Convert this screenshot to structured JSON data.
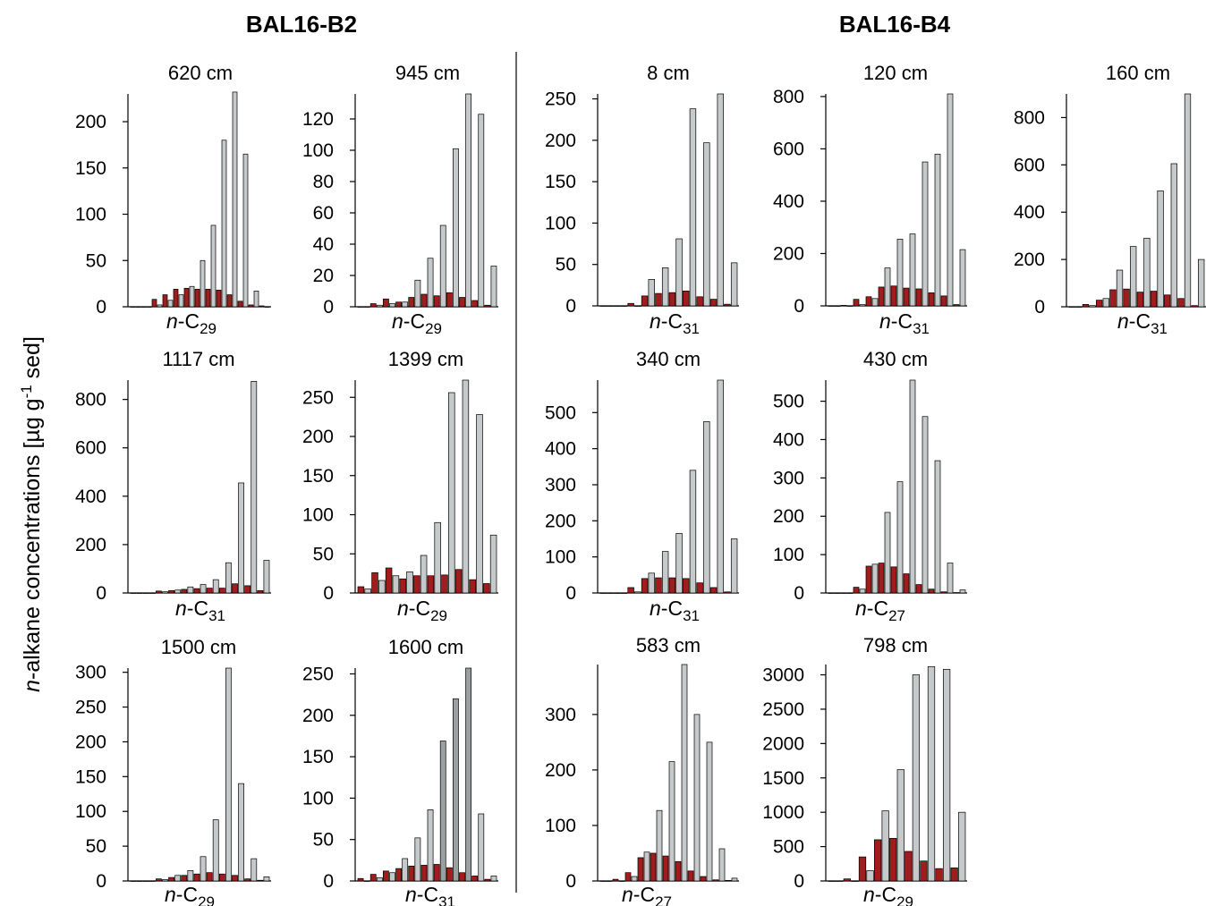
{
  "figure": {
    "ylabel_prefix": "n",
    "ylabel_main": "-alkane concentrations [µg g",
    "ylabel_sup": "-1",
    "ylabel_end": " sed]",
    "cores": [
      {
        "id": "left",
        "title": "BAL16-B2"
      },
      {
        "id": "right",
        "title": "BAL16-B4"
      }
    ]
  },
  "colors": {
    "light_bar": "#c5c9c9",
    "dark_bar": "#9aa0a0",
    "red_bar": "#a11d1d",
    "axis": "#000000",
    "divider": "#333333"
  },
  "chart_data": [
    {
      "type": "bar",
      "title": "620 cm",
      "core": "BAL16-B2",
      "ylim": [
        0,
        230
      ],
      "yticks": [
        "0",
        "50",
        "100",
        "150",
        "200"
      ],
      "ytick_values": [
        0,
        50,
        100,
        150,
        200
      ],
      "marker_prefix": "n",
      "marker_label": "-C",
      "marker_sub": "29",
      "odd_series": [
        0,
        0,
        2,
        7,
        13,
        22,
        50,
        88,
        180,
        232,
        165,
        17,
        0
      ],
      "even_series": [
        0,
        0,
        8,
        13,
        19,
        20,
        19,
        19,
        18,
        13,
        6,
        2,
        1
      ]
    },
    {
      "type": "bar",
      "title": "945 cm",
      "core": "BAL16-B2",
      "ylim": [
        0,
        136
      ],
      "yticks": [
        "0",
        "20",
        "40",
        "60",
        "80",
        "100",
        "120"
      ],
      "ytick_values": [
        0,
        20,
        40,
        60,
        80,
        100,
        120
      ],
      "marker_prefix": "n",
      "marker_label": "-C",
      "marker_sub": "29",
      "odd_series": [
        0,
        1,
        2,
        3,
        17,
        31,
        52,
        101,
        136,
        123,
        26
      ],
      "even_series": [
        0,
        2,
        5,
        3,
        6,
        8,
        7,
        9,
        6,
        4,
        1
      ]
    },
    {
      "type": "bar",
      "title": "1117 cm",
      "core": "BAL16-B2",
      "ylim": [
        0,
        880
      ],
      "yticks": [
        "0",
        "200",
        "400",
        "600",
        "800"
      ],
      "ytick_values": [
        0,
        200,
        400,
        600,
        800
      ],
      "marker_prefix": "n",
      "marker_label": "-C",
      "marker_sub": "31",
      "odd_series": [
        0,
        0,
        5,
        12,
        25,
        35,
        55,
        125,
        455,
        875,
        135
      ],
      "even_series": [
        0,
        0,
        8,
        10,
        15,
        18,
        20,
        20,
        38,
        30,
        10
      ]
    },
    {
      "type": "bar",
      "title": "1399 cm",
      "core": "BAL16-B2",
      "ylim": [
        0,
        272
      ],
      "yticks": [
        "0",
        "50",
        "100",
        "150",
        "200",
        "250"
      ],
      "ytick_values": [
        0,
        50,
        100,
        150,
        200,
        250
      ],
      "marker_prefix": "n",
      "marker_label": "-C",
      "marker_sub": "29",
      "odd_series": [
        5,
        16,
        22,
        27,
        48,
        90,
        256,
        272,
        228,
        74
      ],
      "even_series": [
        8,
        26,
        32,
        18,
        22,
        22,
        23,
        30,
        17,
        12
      ]
    },
    {
      "type": "bar",
      "title": "1500 cm",
      "core": "BAL16-B2",
      "ylim": [
        0,
        306
      ],
      "yticks": [
        "0",
        "50",
        "100",
        "150",
        "200",
        "250",
        "300"
      ],
      "ytick_values": [
        0,
        50,
        100,
        150,
        200,
        250,
        300
      ],
      "marker_prefix": "n",
      "marker_label": "-C",
      "marker_sub": "29",
      "odd_series": [
        0,
        0,
        2,
        8,
        15,
        35,
        88,
        306,
        140,
        32,
        6
      ],
      "even_series": [
        0,
        0,
        3,
        5,
        8,
        10,
        12,
        10,
        8,
        3,
        1
      ]
    },
    {
      "type": "bar",
      "title": "1600 cm",
      "core": "BAL16-B2",
      "ylim": [
        0,
        257
      ],
      "yticks": [
        "0",
        "50",
        "100",
        "150",
        "200",
        "250"
      ],
      "ytick_values": [
        0,
        50,
        100,
        150,
        200,
        250
      ],
      "marker_prefix": "n",
      "marker_label": "-C",
      "marker_sub": "31",
      "odd_series": [
        0,
        4,
        10,
        27,
        52,
        86,
        169,
        220,
        257,
        81,
        6
      ],
      "even_series": [
        3,
        8,
        12,
        15,
        18,
        19,
        20,
        16,
        10,
        6,
        2
      ]
    },
    {
      "type": "bar",
      "title": "8 cm",
      "core": "BAL16-B4",
      "ylim": [
        0,
        256
      ],
      "yticks": [
        "0",
        "50",
        "100",
        "150",
        "200",
        "250"
      ],
      "ytick_values": [
        0,
        50,
        100,
        150,
        200,
        250
      ],
      "marker_prefix": "n",
      "marker_label": "-C",
      "marker_sub": "31",
      "odd_series": [
        0,
        0,
        0,
        32,
        46,
        81,
        238,
        197,
        256,
        52
      ],
      "even_series": [
        0,
        0,
        3,
        12,
        15,
        16,
        18,
        11,
        8,
        2
      ]
    },
    {
      "type": "bar",
      "title": "120 cm",
      "core": "BAL16-B4",
      "ylim": [
        0,
        810
      ],
      "yticks": [
        "0",
        "200",
        "400",
        "600",
        "800"
      ],
      "ytick_values": [
        0,
        200,
        400,
        600,
        800
      ],
      "marker_prefix": "n",
      "marker_label": "-C",
      "marker_sub": "31",
      "odd_series": [
        0,
        0,
        5,
        28,
        145,
        255,
        275,
        550,
        580,
        810,
        215
      ],
      "even_series": [
        0,
        2,
        25,
        35,
        72,
        76,
        68,
        65,
        50,
        38,
        5
      ]
    },
    {
      "type": "bar",
      "title": "160 cm",
      "core": "BAL16-B4",
      "ylim": [
        0,
        900
      ],
      "yticks": [
        "0",
        "200",
        "400",
        "600",
        "800"
      ],
      "ytick_values": [
        0,
        200,
        400,
        600,
        800
      ],
      "marker_prefix": "n",
      "marker_label": "-C",
      "marker_sub": "31",
      "odd_series": [
        0,
        5,
        35,
        155,
        255,
        290,
        490,
        605,
        900,
        200
      ],
      "even_series": [
        0,
        10,
        28,
        72,
        75,
        62,
        66,
        50,
        35,
        5
      ]
    },
    {
      "type": "bar",
      "title": "340 cm",
      "core": "BAL16-B4",
      "ylim": [
        0,
        590
      ],
      "yticks": [
        "0",
        "100",
        "200",
        "300",
        "400",
        "500"
      ],
      "ytick_values": [
        0,
        100,
        200,
        300,
        400,
        500
      ],
      "marker_prefix": "n",
      "marker_label": "-C",
      "marker_sub": "31",
      "odd_series": [
        0,
        0,
        3,
        55,
        115,
        165,
        340,
        475,
        590,
        150
      ],
      "even_series": [
        0,
        0,
        15,
        40,
        42,
        42,
        40,
        28,
        15,
        3
      ]
    },
    {
      "type": "bar",
      "title": "430 cm",
      "core": "BAL16-B4",
      "ylim": [
        0,
        555
      ],
      "yticks": [
        "0",
        "100",
        "200",
        "300",
        "400",
        "500"
      ],
      "ytick_values": [
        0,
        100,
        200,
        300,
        400,
        500
      ],
      "marker_prefix": "n",
      "marker_label": "-C",
      "marker_sub": "27",
      "odd_series": [
        0,
        0,
        10,
        75,
        210,
        290,
        555,
        460,
        345,
        78,
        8
      ],
      "even_series": [
        0,
        0,
        15,
        70,
        78,
        68,
        50,
        22,
        10,
        3,
        1
      ]
    },
    {
      "type": "bar",
      "title": "583 cm",
      "core": "BAL16-B4",
      "ylim": [
        0,
        390
      ],
      "yticks": [
        "0",
        "100",
        "200",
        "300"
      ],
      "ytick_values": [
        0,
        100,
        200,
        300
      ],
      "marker_prefix": "n",
      "marker_label": "-C",
      "marker_sub": "27",
      "odd_series": [
        0,
        0,
        8,
        52,
        127,
        215,
        390,
        300,
        250,
        58,
        5
      ],
      "even_series": [
        0,
        3,
        15,
        42,
        50,
        45,
        35,
        18,
        8,
        2,
        1
      ]
    },
    {
      "type": "bar",
      "title": "798 cm",
      "core": "BAL16-B4",
      "ylim": [
        0,
        3150
      ],
      "yticks": [
        "0",
        "500",
        "1000",
        "1500",
        "2000",
        "2500",
        "3000"
      ],
      "ytick_values": [
        0,
        500,
        1000,
        1500,
        2000,
        2500,
        3000
      ],
      "marker_prefix": "n",
      "marker_label": "-C",
      "marker_sub": "29",
      "odd_series": [
        0,
        0,
        150,
        1020,
        1620,
        3000,
        3120,
        3080,
        1000
      ],
      "even_series": [
        0,
        30,
        350,
        600,
        620,
        430,
        290,
        180,
        190
      ]
    }
  ]
}
